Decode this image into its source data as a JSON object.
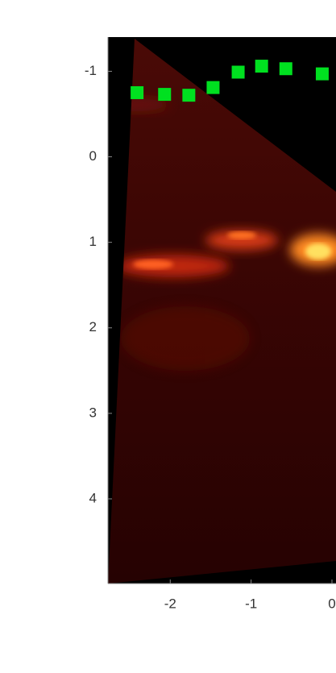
{
  "chart_data": {
    "type": "scatter",
    "x": [
      -2.41,
      -2.07,
      -1.77,
      -1.47,
      -1.16,
      -0.87,
      -0.57,
      -0.12
    ],
    "values": [
      -0.75,
      -0.73,
      -0.72,
      -0.81,
      -0.99,
      -1.06,
      -1.03,
      -0.97
    ],
    "color": "#00e020",
    "xlim": [
      -2.77,
      0.05
    ],
    "ylim": [
      -1.4,
      4.99
    ],
    "yreverse": true,
    "xticks": [
      -2,
      -1,
      0
    ],
    "yticks": [
      -1,
      0,
      1,
      2,
      3,
      4
    ]
  }
}
